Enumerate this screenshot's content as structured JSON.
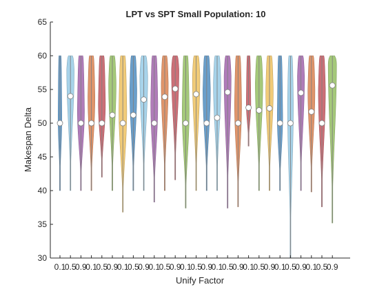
{
  "chart_data": {
    "type": "violin",
    "title": "LPT vs SPT Small Population: 10",
    "xlabel": "Unify Factor",
    "ylabel": "Makespan Delta",
    "ylim": [
      30,
      65
    ],
    "yticks": [
      30,
      35,
      40,
      45,
      50,
      55,
      60,
      65
    ],
    "grid": false,
    "legend": "none",
    "categories": [
      "0.1",
      "0.5",
      "0.9",
      "0.1",
      "0.5",
      "0.9",
      "0.1",
      "0.5",
      "0.9",
      "0.1",
      "0.5",
      "0.9",
      "0.1",
      "0.5",
      "0.9",
      "0.1",
      "0.5",
      "0.9",
      "0.1",
      "0.5",
      "0.9",
      "0.1",
      "0.5",
      "0.9",
      "0.1",
      "0.5",
      "0.9"
    ],
    "palette": [
      "#6a9fcb",
      "#a7d3ea",
      "#b07cb9",
      "#e0956b",
      "#cc6f77",
      "#a5c97a",
      "#f1cb78"
    ],
    "violins": [
      {
        "category": "0.1",
        "min": 40,
        "max": 60,
        "median": 50,
        "bulge": 51,
        "width": 0.45
      },
      {
        "category": "0.5",
        "min": 40,
        "max": 60,
        "median": 54,
        "bulge": 58,
        "width": 0.9
      },
      {
        "category": "0.9",
        "min": 40,
        "max": 60,
        "median": 50,
        "bulge": 52,
        "width": 0.85
      },
      {
        "category": "0.1",
        "min": 40,
        "max": 60,
        "median": 50,
        "bulge": 54,
        "width": 0.85
      },
      {
        "category": "0.5",
        "min": 42,
        "max": 60,
        "median": 50,
        "bulge": 53,
        "width": 0.85
      },
      {
        "category": "0.9",
        "min": 40,
        "max": 60,
        "median": 51.2,
        "bulge": 56,
        "width": 0.9
      },
      {
        "category": "0.1",
        "min": 36.8,
        "max": 60,
        "median": 50,
        "bulge": 52,
        "width": 0.95
      },
      {
        "category": "0.5",
        "min": 40,
        "max": 60,
        "median": 51.2,
        "bulge": 55,
        "width": 0.85
      },
      {
        "category": "0.9",
        "min": 40,
        "max": 60,
        "median": 53.5,
        "bulge": 57,
        "width": 0.95
      },
      {
        "category": "0.1",
        "min": 38.3,
        "max": 60,
        "median": 50,
        "bulge": 53,
        "width": 0.85
      },
      {
        "category": "0.5",
        "min": 40,
        "max": 60,
        "median": 53.9,
        "bulge": 56,
        "width": 0.85
      },
      {
        "category": "0.9",
        "min": 41.6,
        "max": 60,
        "median": 55.1,
        "bulge": 58,
        "width": 0.9
      },
      {
        "category": "0.1",
        "min": 37.4,
        "max": 60,
        "median": 50,
        "bulge": 52,
        "width": 0.85
      },
      {
        "category": "0.5",
        "min": 40,
        "max": 60,
        "median": 54.3,
        "bulge": 57,
        "width": 0.9
      },
      {
        "category": "0.9",
        "min": 40,
        "max": 60,
        "median": 50,
        "bulge": 55,
        "width": 0.9
      },
      {
        "category": "0.1",
        "min": 40,
        "max": 60,
        "median": 50.8,
        "bulge": 56,
        "width": 0.9
      },
      {
        "category": "0.5",
        "min": 37.4,
        "max": 60,
        "median": 54.6,
        "bulge": 57,
        "width": 0.85
      },
      {
        "category": "0.9",
        "min": 37.6,
        "max": 60,
        "median": 50,
        "bulge": 53,
        "width": 0.85
      },
      {
        "category": "0.1",
        "min": 46.6,
        "max": 60,
        "median": 52.3,
        "bulge": 53,
        "width": 0.55
      },
      {
        "category": "0.5",
        "min": 40,
        "max": 60,
        "median": 51.9,
        "bulge": 56,
        "width": 0.9
      },
      {
        "category": "0.9",
        "min": 40,
        "max": 60,
        "median": 52.2,
        "bulge": 55,
        "width": 0.9
      },
      {
        "category": "0.1",
        "min": 40,
        "max": 60,
        "median": 50,
        "bulge": 51,
        "width": 0.65
      },
      {
        "category": "0.5",
        "min": 30,
        "max": 60,
        "median": 50,
        "bulge": 53,
        "width": 0.7
      },
      {
        "category": "0.9",
        "min": 40,
        "max": 60,
        "median": 54.5,
        "bulge": 57,
        "width": 0.85
      },
      {
        "category": "0.1",
        "min": 39.8,
        "max": 60,
        "median": 51.7,
        "bulge": 55,
        "width": 0.85
      },
      {
        "category": "0.5",
        "min": 37.6,
        "max": 60,
        "median": 50,
        "bulge": 55,
        "width": 0.85
      },
      {
        "category": "0.9",
        "min": 35.2,
        "max": 60,
        "median": 55.6,
        "bulge": 59,
        "width": 1.0
      }
    ]
  }
}
